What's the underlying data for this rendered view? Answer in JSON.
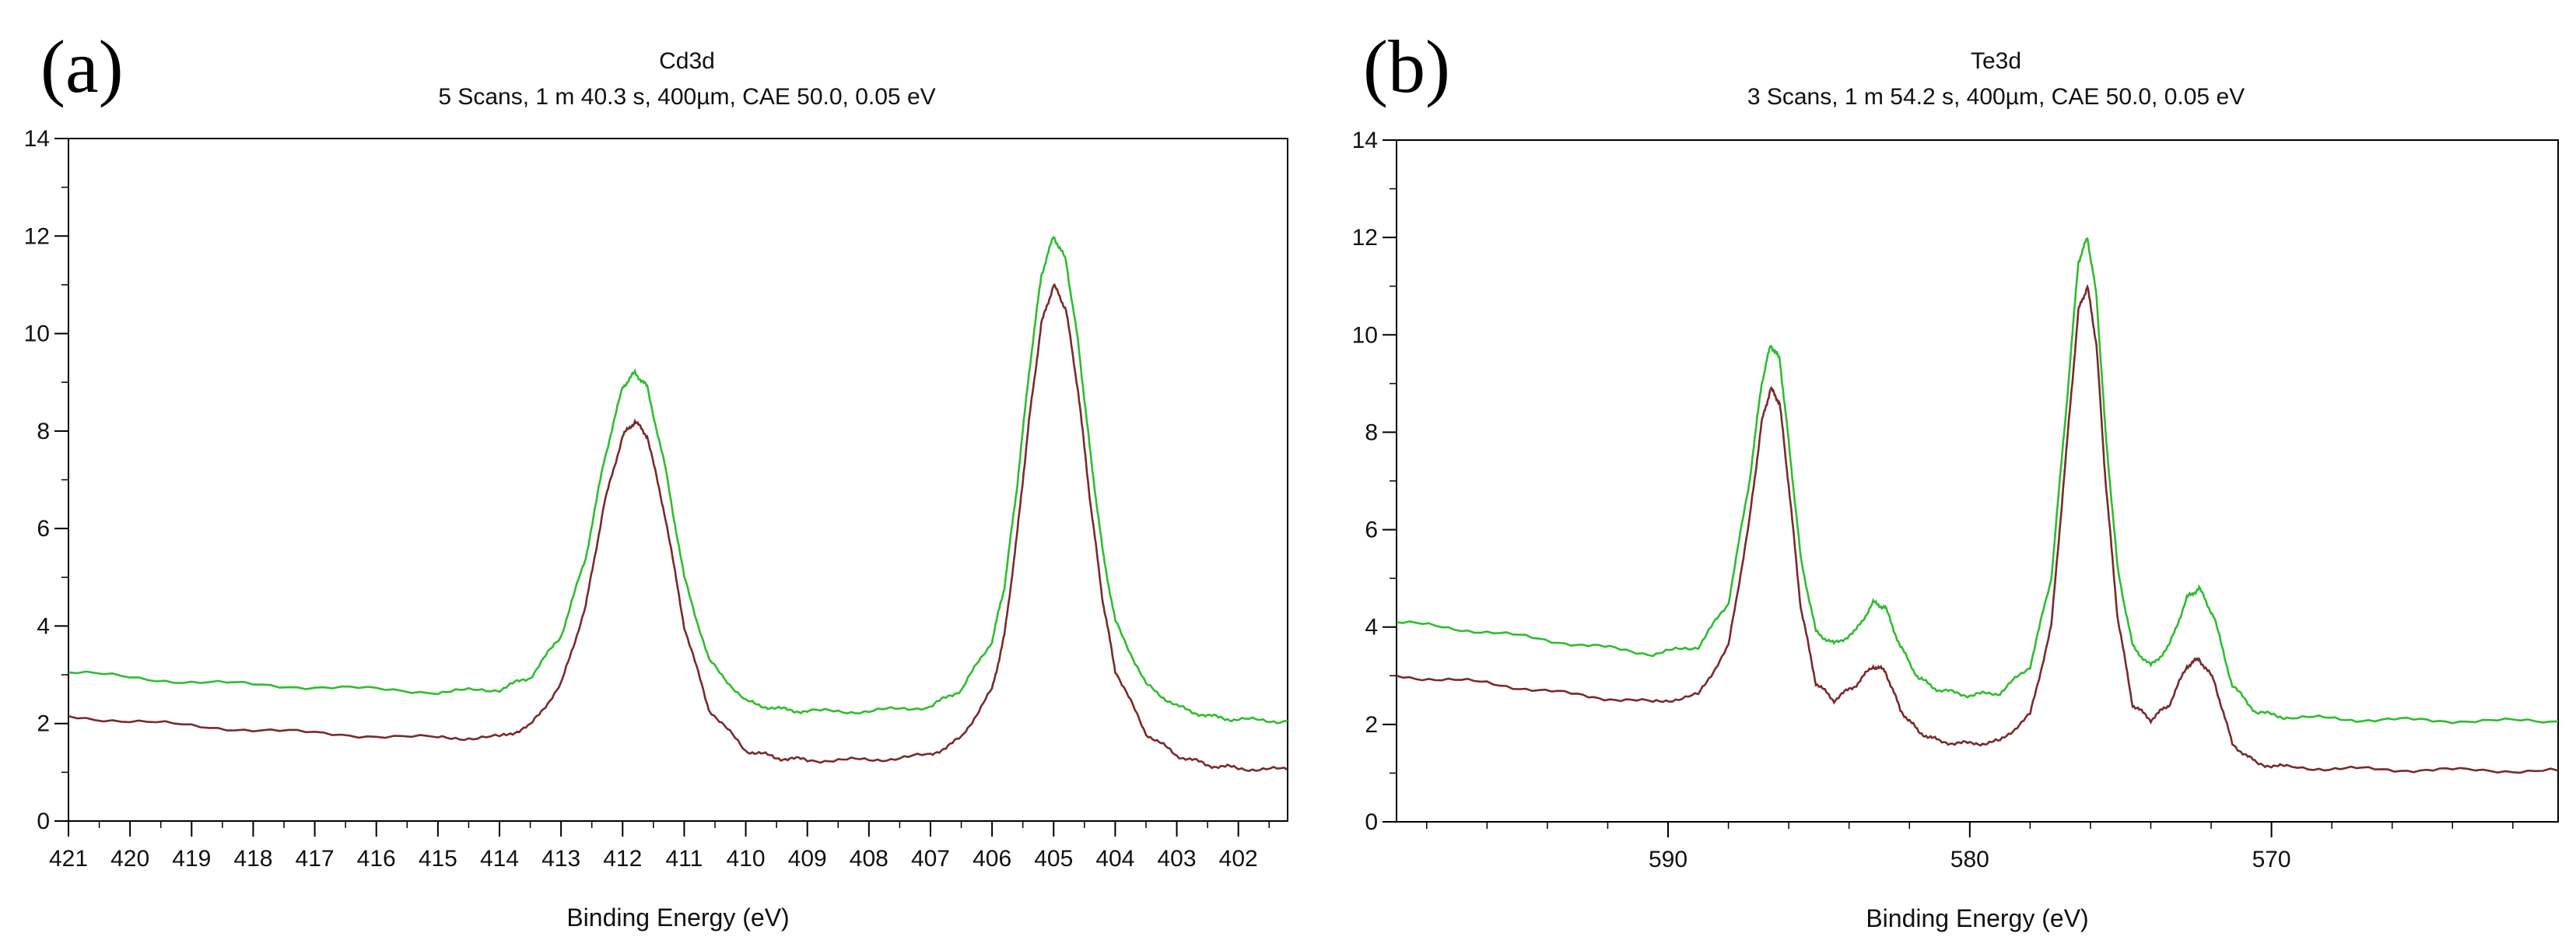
{
  "chart_data": [
    {
      "type": "line",
      "panel_label": "(a)",
      "title": "Cd3d",
      "subtitle": "5 Scans,  1 m 40.3 s,  400µm,  CAE 50.0,  0.05 eV",
      "xlabel": "Binding Energy (eV)",
      "ylabel": "",
      "xlim": [
        421,
        401.2
      ],
      "ylim": [
        0,
        14
      ],
      "xticks": [
        421,
        420,
        419,
        418,
        417,
        416,
        415,
        414,
        413,
        412,
        411,
        410,
        409,
        408,
        407,
        406,
        405,
        404,
        403,
        402
      ],
      "yticks": [
        0,
        2,
        4,
        6,
        8,
        10,
        12,
        14
      ],
      "series": [
        {
          "name": "green",
          "color": "#2ebd2e",
          "x": [
            421,
            419,
            417,
            415,
            414,
            413.5,
            413,
            412.6,
            412.3,
            412,
            411.8,
            411.6,
            411.3,
            411,
            410.6,
            410,
            409.5,
            409,
            408,
            407,
            406.5,
            406,
            405.8,
            405.6,
            405.4,
            405.2,
            405.0,
            404.8,
            404.6,
            404.4,
            404.2,
            404.0,
            403.5,
            403,
            402.5,
            402,
            401.2
          ],
          "y": [
            3.05,
            2.85,
            2.75,
            2.65,
            2.7,
            2.95,
            3.8,
            5.4,
            7.4,
            8.9,
            9.2,
            8.9,
            7.2,
            5.0,
            3.3,
            2.45,
            2.3,
            2.25,
            2.25,
            2.35,
            2.7,
            3.7,
            4.8,
            6.8,
            9.2,
            11.2,
            12.0,
            11.5,
            9.8,
            7.5,
            5.5,
            4.1,
            2.8,
            2.35,
            2.15,
            2.08,
            2.05
          ]
        },
        {
          "name": "dark-red",
          "color": "#7a2a2a",
          "x": [
            421,
            419,
            417,
            415,
            414,
            413.5,
            413,
            412.6,
            412.3,
            412,
            411.8,
            411.6,
            411.3,
            411,
            410.6,
            410,
            409.5,
            409,
            408,
            407,
            406.5,
            406,
            405.8,
            405.6,
            405.4,
            405.2,
            405.0,
            404.8,
            404.6,
            404.4,
            404.2,
            404.0,
            403.5,
            403,
            402.5,
            402,
            401.2
          ],
          "y": [
            2.15,
            1.95,
            1.8,
            1.7,
            1.72,
            1.95,
            2.8,
            4.4,
            6.5,
            7.9,
            8.2,
            7.9,
            6.2,
            4.0,
            2.3,
            1.45,
            1.3,
            1.25,
            1.25,
            1.35,
            1.7,
            2.7,
            3.8,
            5.8,
            8.2,
            10.2,
            11.0,
            10.5,
            8.8,
            6.5,
            4.5,
            3.1,
            1.8,
            1.35,
            1.15,
            1.08,
            1.05
          ]
        }
      ]
    },
    {
      "type": "line",
      "panel_label": "(b)",
      "title": "Te3d",
      "subtitle": "3 Scans,  1 m 54.2 s,  400µm,  CAE 50.0,  0.05 eV",
      "xlabel": "Binding Energy (eV)",
      "ylabel": "",
      "xlim": [
        599,
        560.5
      ],
      "ylim": [
        0,
        14
      ],
      "xticks": [
        590,
        580,
        570
      ],
      "yticks": [
        0,
        2,
        4,
        6,
        8,
        10,
        12,
        14
      ],
      "series": [
        {
          "name": "green",
          "color": "#2ebd2e",
          "x": [
            599,
            596,
            593,
            590.5,
            589,
            588,
            587.3,
            586.9,
            586.6,
            586.3,
            586,
            585.6,
            585.1,
            584.5,
            583.8,
            583.2,
            582.8,
            582.3,
            581.7,
            581,
            580,
            579,
            578,
            577.3,
            576.8,
            576.4,
            576.1,
            575.8,
            575.5,
            575.1,
            574.6,
            574,
            573.4,
            572.8,
            572.4,
            571.9,
            571.3,
            570.5,
            569.5,
            567,
            564,
            560.5
          ],
          "y": [
            4.1,
            3.9,
            3.65,
            3.45,
            3.6,
            4.5,
            7.0,
            9.0,
            9.8,
            9.5,
            7.8,
            5.4,
            3.9,
            3.65,
            3.9,
            4.5,
            4.4,
            3.6,
            2.95,
            2.7,
            2.6,
            2.65,
            3.2,
            5.0,
            8.5,
            11.5,
            12.0,
            10.8,
            8.0,
            5.2,
            3.6,
            3.2,
            3.6,
            4.6,
            4.8,
            4.2,
            2.8,
            2.25,
            2.15,
            2.1,
            2.08,
            2.06
          ]
        },
        {
          "name": "dark-red",
          "color": "#7a2a2a",
          "x": [
            599,
            596,
            593,
            590.5,
            589,
            588,
            587.3,
            586.9,
            586.6,
            586.3,
            586,
            585.6,
            585.1,
            584.5,
            583.8,
            583.2,
            582.8,
            582.3,
            581.7,
            581,
            580,
            579,
            578,
            577.3,
            576.8,
            576.4,
            576.1,
            575.8,
            575.5,
            575.1,
            574.6,
            574,
            573.4,
            572.8,
            572.4,
            571.9,
            571.3,
            570.5,
            569.5,
            567,
            564,
            560.5
          ],
          "y": [
            3.0,
            2.85,
            2.6,
            2.45,
            2.6,
            3.6,
            6.2,
            8.2,
            8.9,
            8.6,
            6.9,
            4.4,
            2.85,
            2.5,
            2.8,
            3.2,
            3.1,
            2.3,
            1.85,
            1.65,
            1.6,
            1.65,
            2.2,
            4.0,
            7.6,
            10.5,
            11.0,
            9.8,
            7.0,
            4.2,
            2.4,
            2.1,
            2.4,
            3.2,
            3.35,
            2.9,
            1.6,
            1.2,
            1.12,
            1.08,
            1.06,
            1.05
          ]
        }
      ]
    }
  ]
}
